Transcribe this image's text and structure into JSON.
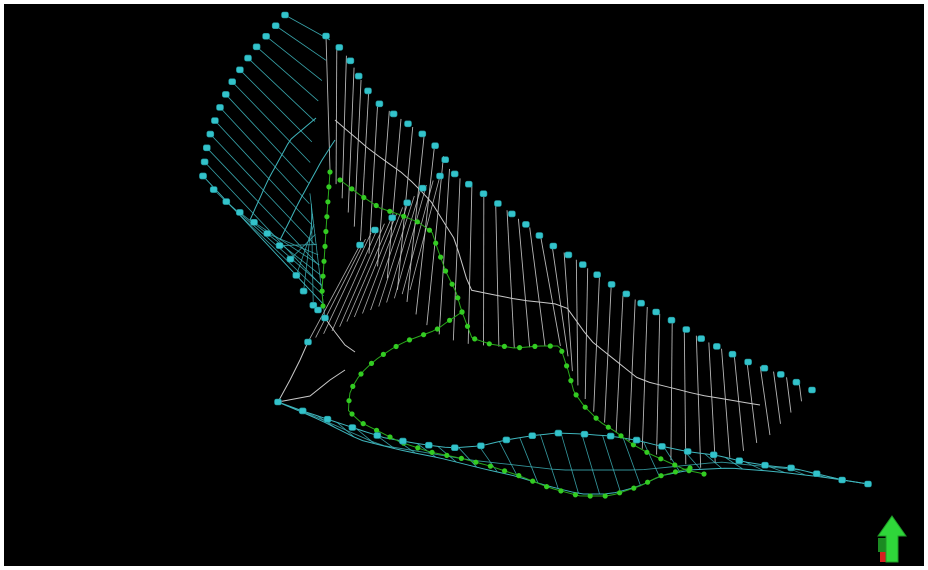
{
  "viewport": {
    "background": "#000000",
    "frame": "#ffffff"
  },
  "colors": {
    "cyan_wire": "#3fb6bd",
    "cyan_node": "#33c3cb",
    "grey_wire": "#c9c9c9",
    "green_node": "#33cc22",
    "axis_up": "#2fd63a",
    "axis_base": "#d61f1f"
  },
  "icons": {
    "orientation": "up-arrow-axis-icon"
  }
}
